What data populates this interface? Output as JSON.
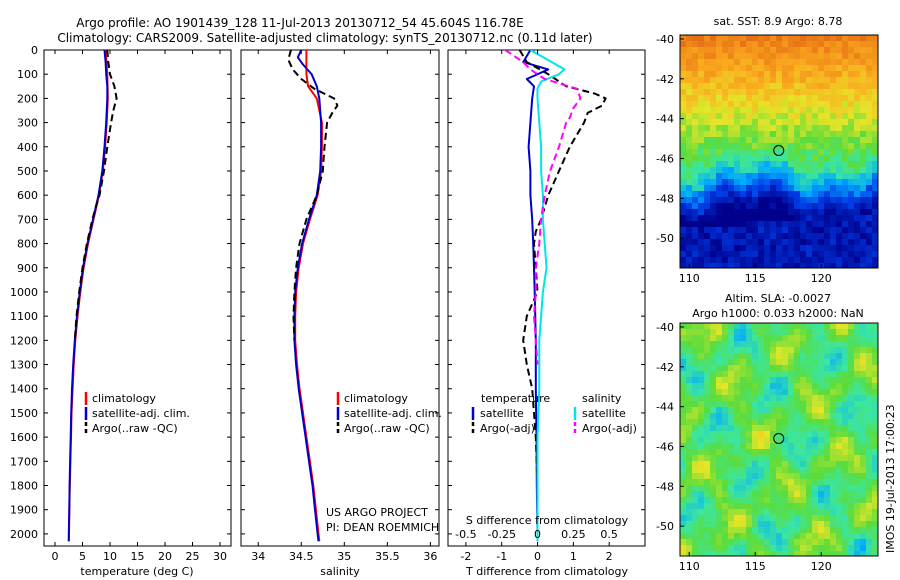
{
  "title": {
    "line1": "Argo profile: AO 1901439_128 11-Jul-2013 20130712_54 45.604S 116.78E",
    "line2": "Climatology: CARS2009. Satellite-adjusted climatology: synTS_20130712.nc (0.11d later)"
  },
  "depth_ticks": [
    "0",
    "100",
    "200",
    "300",
    "400",
    "500",
    "600",
    "700",
    "800",
    "900",
    "1000",
    "1100",
    "1200",
    "1300",
    "1400",
    "1500",
    "1600",
    "1700",
    "1800",
    "1900",
    "2000"
  ],
  "colors": {
    "climatology": "#ff0000",
    "satellite": "#0000cc",
    "argo": "#000000",
    "sal_satellite": "#00e5e5",
    "sal_argo": "#ff00ff"
  },
  "chart_data": [
    {
      "type": "line",
      "panel": "temperature",
      "xlabel": "temperature (deg C)",
      "xticks": [
        "0",
        "5",
        "10",
        "15",
        "20",
        "25",
        "30"
      ],
      "xlim": [
        -2,
        32
      ],
      "ylim": [
        2050,
        0
      ],
      "legend": [
        "climatology",
        "satellite-adj. clim.",
        "Argo(..raw -QC)"
      ],
      "legend_position": "lower-center",
      "series": [
        {
          "name": "climatology",
          "style": "solid",
          "color": "#ff0000",
          "depth": [
            0,
            100,
            200,
            300,
            400,
            500,
            600,
            700,
            800,
            900,
            1000,
            1100,
            1200,
            1300,
            1400,
            1500,
            1600,
            1700,
            1800,
            1900,
            2000,
            2030
          ],
          "values": [
            9.2,
            9.5,
            9.6,
            9.4,
            9.1,
            8.7,
            8.0,
            7.0,
            6.0,
            5.2,
            4.6,
            4.1,
            3.7,
            3.4,
            3.2,
            3.0,
            2.9,
            2.8,
            2.7,
            2.6,
            2.55,
            2.5
          ]
        },
        {
          "name": "satellite-adj. clim.",
          "style": "solid",
          "color": "#0000cc",
          "depth": [
            0,
            50,
            100,
            150,
            200,
            300,
            400,
            500,
            600,
            700,
            800,
            900,
            1000,
            1100,
            1200,
            1300,
            1400,
            1500,
            1600,
            1700,
            1800,
            1900,
            2000,
            2030
          ],
          "values": [
            9.0,
            9.2,
            9.3,
            9.5,
            9.5,
            9.3,
            9.0,
            8.6,
            7.9,
            6.9,
            5.9,
            5.1,
            4.5,
            4.0,
            3.6,
            3.3,
            3.1,
            2.95,
            2.85,
            2.75,
            2.65,
            2.6,
            2.5,
            2.5
          ]
        },
        {
          "name": "Argo(..raw -QC)",
          "style": "dashed",
          "color": "#000000",
          "depth": [
            0,
            50,
            100,
            150,
            200,
            250,
            300,
            400,
            500,
            600,
            650,
            700,
            800,
            900,
            1000,
            1100,
            1200
          ],
          "values": [
            9.5,
            9.7,
            10.0,
            10.8,
            11.2,
            10.6,
            10.2,
            9.5,
            8.9,
            8.1,
            7.4,
            6.8,
            5.8,
            5.0,
            4.4,
            3.9,
            3.6
          ]
        }
      ]
    },
    {
      "type": "line",
      "panel": "salinity",
      "xlabel": "salinity",
      "xticks": [
        "34",
        "34.5",
        "35",
        "35.5",
        "36"
      ],
      "xlim": [
        33.8,
        36.1
      ],
      "ylim": [
        2050,
        0
      ],
      "legend": [
        "climatology",
        "satellite-adj. clim.",
        "Argo(..raw -QC)"
      ],
      "legend_position": "lower-center",
      "series": [
        {
          "name": "climatology",
          "style": "solid",
          "color": "#ff0000",
          "depth": [
            0,
            50,
            100,
            150,
            200,
            300,
            400,
            500,
            600,
            700,
            800,
            900,
            1000,
            1100,
            1200,
            1300,
            1400,
            1500,
            1600,
            1700,
            1800,
            1900,
            2000,
            2030
          ],
          "values": [
            34.56,
            34.56,
            34.56,
            34.58,
            34.68,
            34.74,
            34.74,
            34.73,
            34.69,
            34.6,
            34.52,
            34.47,
            34.44,
            34.43,
            34.43,
            34.45,
            34.48,
            34.52,
            34.56,
            34.6,
            34.64,
            34.67,
            34.7,
            34.71
          ]
        },
        {
          "name": "satellite-adj. clim.",
          "style": "solid",
          "color": "#0000cc",
          "depth": [
            0,
            30,
            60,
            100,
            150,
            200,
            300,
            400,
            500,
            600,
            700,
            800,
            900,
            1000,
            1100,
            1200,
            1300,
            1400,
            1500,
            1600,
            1700,
            1800,
            1900,
            2000,
            2030
          ],
          "values": [
            34.5,
            34.46,
            34.52,
            34.62,
            34.68,
            34.71,
            34.73,
            34.73,
            34.72,
            34.68,
            34.59,
            34.51,
            34.46,
            34.43,
            34.42,
            34.42,
            34.44,
            34.47,
            34.51,
            34.55,
            34.59,
            34.63,
            34.66,
            34.69,
            34.7
          ]
        },
        {
          "name": "Argo(..raw -QC)",
          "style": "dashed",
          "color": "#000000",
          "depth": [
            0,
            40,
            80,
            120,
            160,
            200,
            230,
            260,
            300,
            400,
            500,
            600,
            700,
            800,
            900,
            1000,
            1100,
            1200
          ],
          "values": [
            34.38,
            34.35,
            34.4,
            34.5,
            34.65,
            34.88,
            34.92,
            34.86,
            34.8,
            34.77,
            34.75,
            34.68,
            34.56,
            34.48,
            34.44,
            34.42,
            34.41,
            34.42
          ]
        }
      ]
    },
    {
      "type": "line",
      "panel": "differences",
      "xlabel": "T difference from climatology",
      "xlabel2": "S difference from climatology",
      "xticks": [
        "-2",
        "-1",
        "0",
        "1",
        "2"
      ],
      "xticks2": [
        "-0.5",
        "-0.25",
        "0",
        "0.25",
        "0.5"
      ],
      "xlim": [
        -2.5,
        3
      ],
      "ylim": [
        2050,
        0
      ],
      "legend_headers": [
        "temperature",
        "salinity"
      ],
      "legend": [
        "satellite",
        "Argo(-adj)",
        "satellite",
        "Argo(-adj)"
      ],
      "legend_position": "lower-center",
      "series": [
        {
          "name": "satellite",
          "group": "temperature",
          "style": "solid",
          "color": "#0000cc",
          "depth": [
            0,
            50,
            80,
            120,
            150,
            200,
            300,
            400,
            500,
            600,
            700,
            800,
            900,
            1000,
            1200,
            1400,
            1600,
            1800,
            2000,
            2030
          ],
          "values": [
            -0.2,
            -0.4,
            0.3,
            -0.3,
            -0.1,
            -0.15,
            -0.2,
            -0.25,
            -0.2,
            -0.2,
            -0.15,
            -0.12,
            -0.1,
            -0.08,
            -0.05,
            -0.05,
            -0.03,
            -0.02,
            0.0,
            0.0
          ]
        },
        {
          "name": "Argo(-adj)",
          "group": "temperature",
          "style": "dashed",
          "color": "#000000",
          "depth": [
            0,
            50,
            100,
            150,
            180,
            200,
            230,
            260,
            300,
            400,
            500,
            600,
            700,
            750,
            800,
            900,
            1000,
            1100,
            1200,
            1300,
            1400,
            1600,
            1800,
            2000,
            2030
          ],
          "values": [
            -0.5,
            -0.3,
            0.3,
            0.8,
            1.6,
            1.9,
            1.8,
            1.4,
            1.3,
            0.9,
            0.6,
            0.3,
            0.1,
            -0.05,
            -0.1,
            -0.05,
            0.0,
            -0.3,
            -0.4,
            -0.3,
            -0.15,
            -0.05,
            0.0,
            0.0,
            0.0
          ]
        },
        {
          "name": "satellite",
          "group": "salinity",
          "style": "solid",
          "color": "#00e5e5",
          "depth": [
            0,
            50,
            80,
            100,
            130,
            160,
            200,
            300,
            400,
            500,
            600,
            700,
            800,
            900,
            1000,
            1200,
            1400,
            1600,
            1800,
            2000,
            2030
          ],
          "values": [
            -0.2,
            0.4,
            0.75,
            0.6,
            0.1,
            0.0,
            0.0,
            0.05,
            0.1,
            0.1,
            0.15,
            0.15,
            0.2,
            0.25,
            0.15,
            0.05,
            0.05,
            0.0,
            0.0,
            0.0,
            0.0
          ]
        },
        {
          "name": "Argo(-adj)",
          "group": "salinity",
          "style": "dashed",
          "color": "#ff00ff",
          "depth": [
            0,
            50,
            80,
            120,
            160,
            200,
            240,
            280,
            300,
            400,
            500,
            600,
            700,
            800,
            900,
            1000,
            1100,
            1200,
            1300
          ],
          "values": [
            -0.9,
            -0.4,
            -0.2,
            0.2,
            1.1,
            1.2,
            1.0,
            0.9,
            0.8,
            0.6,
            0.35,
            0.2,
            0.1,
            0.05,
            -0.05,
            -0.05,
            -0.1,
            -0.05,
            0.0
          ]
        }
      ]
    },
    {
      "type": "heatmap",
      "panel": "sst_map",
      "title": "sat. SST: 8.9 Argo: 8.78",
      "xticks": [
        "110",
        "115",
        "120"
      ],
      "yticks": [
        "-40",
        "-42",
        "-44",
        "-46",
        "-48",
        "-50"
      ],
      "xlim": [
        109.3,
        124.3
      ],
      "ylim": [
        -51.5,
        -39.8
      ],
      "marker": {
        "lon": 116.78,
        "lat": -45.6
      }
    },
    {
      "type": "heatmap",
      "panel": "sla_map",
      "title": "Altim. SLA: -0.0027",
      "subtitle": "Argo h1000: 0.033 h2000: NaN",
      "xticks": [
        "110",
        "115",
        "120"
      ],
      "yticks": [
        "-40",
        "-42",
        "-44",
        "-46",
        "-48",
        "-50"
      ],
      "xlim": [
        109.3,
        124.3
      ],
      "ylim": [
        -51.5,
        -39.8
      ],
      "marker": {
        "lon": 116.78,
        "lat": -45.6
      }
    }
  ],
  "annotations": {
    "project_line1": "US ARGO PROJECT",
    "project_line2": "PI: DEAN ROEMMICH",
    "imos_stamp": "IMOS 19-Jul-2013 17:00:23"
  }
}
